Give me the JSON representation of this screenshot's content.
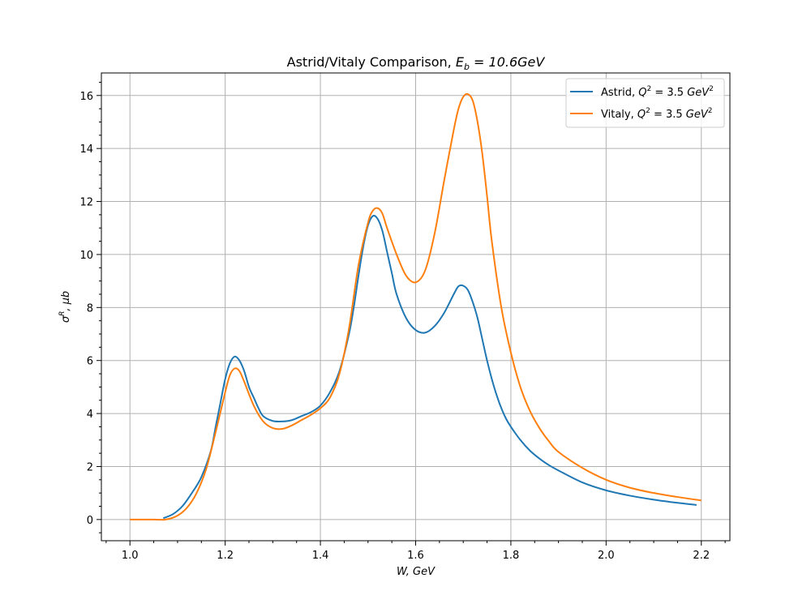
{
  "chart_data": {
    "type": "line",
    "title": "Astrid/Vitaly Comparison, E_b = 10.6GeV",
    "title_parts": {
      "main": "Astrid/Vitaly Comparison, ",
      "sym": "E",
      "sub": "b",
      "rest": " = 10.6GeV"
    },
    "xlabel": "W, GeV",
    "ylabel": "σ^R, μb",
    "ylabel_parts": {
      "sym": "σ",
      "sup": "R",
      "rest": ", μb"
    },
    "xlim": [
      0.94,
      2.26
    ],
    "ylim": [
      -0.8,
      16.85
    ],
    "x_ticks": [
      1.0,
      1.2,
      1.4,
      1.6,
      1.8,
      2.0,
      2.2
    ],
    "x_tick_labels": [
      "1.0",
      "1.2",
      "1.4",
      "1.6",
      "1.8",
      "2.0",
      "2.2"
    ],
    "y_ticks": [
      0,
      2,
      4,
      6,
      8,
      10,
      12,
      14,
      16
    ],
    "y_tick_labels": [
      "0",
      "2",
      "4",
      "6",
      "8",
      "10",
      "12",
      "14",
      "16"
    ],
    "grid": true,
    "legend_position": "top-right",
    "series": [
      {
        "name": "Astrid, Q² = 3.5 GeV²",
        "name_parts": {
          "pre": "Astrid, ",
          "sym": "Q",
          "sup": "2",
          "mid": " = 3.5 ",
          "unit": "GeV",
          "unit_sup": "2"
        },
        "color": "#1f77b4",
        "x": [
          1.07,
          1.09,
          1.11,
          1.13,
          1.15,
          1.17,
          1.18,
          1.19,
          1.2,
          1.21,
          1.22,
          1.23,
          1.24,
          1.25,
          1.26,
          1.27,
          1.28,
          1.3,
          1.32,
          1.34,
          1.36,
          1.38,
          1.4,
          1.42,
          1.44,
          1.46,
          1.47,
          1.48,
          1.49,
          1.5,
          1.51,
          1.52,
          1.53,
          1.54,
          1.55,
          1.56,
          1.58,
          1.6,
          1.62,
          1.64,
          1.66,
          1.68,
          1.69,
          1.7,
          1.71,
          1.72,
          1.73,
          1.74,
          1.75,
          1.76,
          1.77,
          1.78,
          1.79,
          1.8,
          1.82,
          1.84,
          1.86,
          1.88,
          1.9,
          1.95,
          2.0,
          2.05,
          2.1,
          2.15,
          2.19
        ],
        "y": [
          0.05,
          0.2,
          0.5,
          1.0,
          1.6,
          2.6,
          3.5,
          4.4,
          5.3,
          5.9,
          6.15,
          6.0,
          5.6,
          5.0,
          4.6,
          4.2,
          3.9,
          3.72,
          3.7,
          3.75,
          3.9,
          4.05,
          4.3,
          4.8,
          5.6,
          7.0,
          8.0,
          9.2,
          10.3,
          11.1,
          11.45,
          11.35,
          10.9,
          10.1,
          9.3,
          8.5,
          7.6,
          7.15,
          7.05,
          7.3,
          7.8,
          8.5,
          8.8,
          8.82,
          8.65,
          8.2,
          7.6,
          6.8,
          6.0,
          5.3,
          4.7,
          4.2,
          3.8,
          3.5,
          3.0,
          2.6,
          2.3,
          2.05,
          1.85,
          1.4,
          1.1,
          0.9,
          0.75,
          0.63,
          0.55
        ]
      },
      {
        "name": "Vitaly, Q² = 3.5 GeV²",
        "name_parts": {
          "pre": "Vitaly, ",
          "sym": "Q",
          "sup": "2",
          "mid": " = 3.5 ",
          "unit": "GeV",
          "unit_sup": "2"
        },
        "color": "#ff7f0e",
        "x": [
          1.0,
          1.05,
          1.075,
          1.1,
          1.12,
          1.14,
          1.16,
          1.18,
          1.2,
          1.21,
          1.22,
          1.23,
          1.24,
          1.26,
          1.28,
          1.3,
          1.32,
          1.34,
          1.36,
          1.38,
          1.4,
          1.42,
          1.44,
          1.46,
          1.48,
          1.5,
          1.51,
          1.52,
          1.53,
          1.54,
          1.56,
          1.58,
          1.6,
          1.62,
          1.64,
          1.66,
          1.68,
          1.69,
          1.7,
          1.71,
          1.72,
          1.73,
          1.74,
          1.75,
          1.76,
          1.78,
          1.8,
          1.82,
          1.84,
          1.86,
          1.88,
          1.9,
          1.95,
          2.0,
          2.05,
          2.1,
          2.15,
          2.2
        ],
        "y": [
          0.0,
          0.0,
          0.0,
          0.15,
          0.45,
          1.0,
          1.9,
          3.3,
          4.8,
          5.45,
          5.7,
          5.6,
          5.2,
          4.3,
          3.7,
          3.45,
          3.42,
          3.55,
          3.75,
          3.95,
          4.2,
          4.6,
          5.5,
          7.2,
          9.6,
          11.2,
          11.65,
          11.75,
          11.55,
          11.0,
          10.0,
          9.2,
          8.95,
          9.4,
          10.8,
          12.8,
          14.7,
          15.5,
          15.95,
          16.05,
          15.8,
          15.0,
          13.8,
          12.2,
          10.5,
          8.0,
          6.3,
          5.0,
          4.1,
          3.45,
          2.95,
          2.55,
          1.95,
          1.5,
          1.2,
          1.0,
          0.85,
          0.72
        ]
      }
    ]
  }
}
